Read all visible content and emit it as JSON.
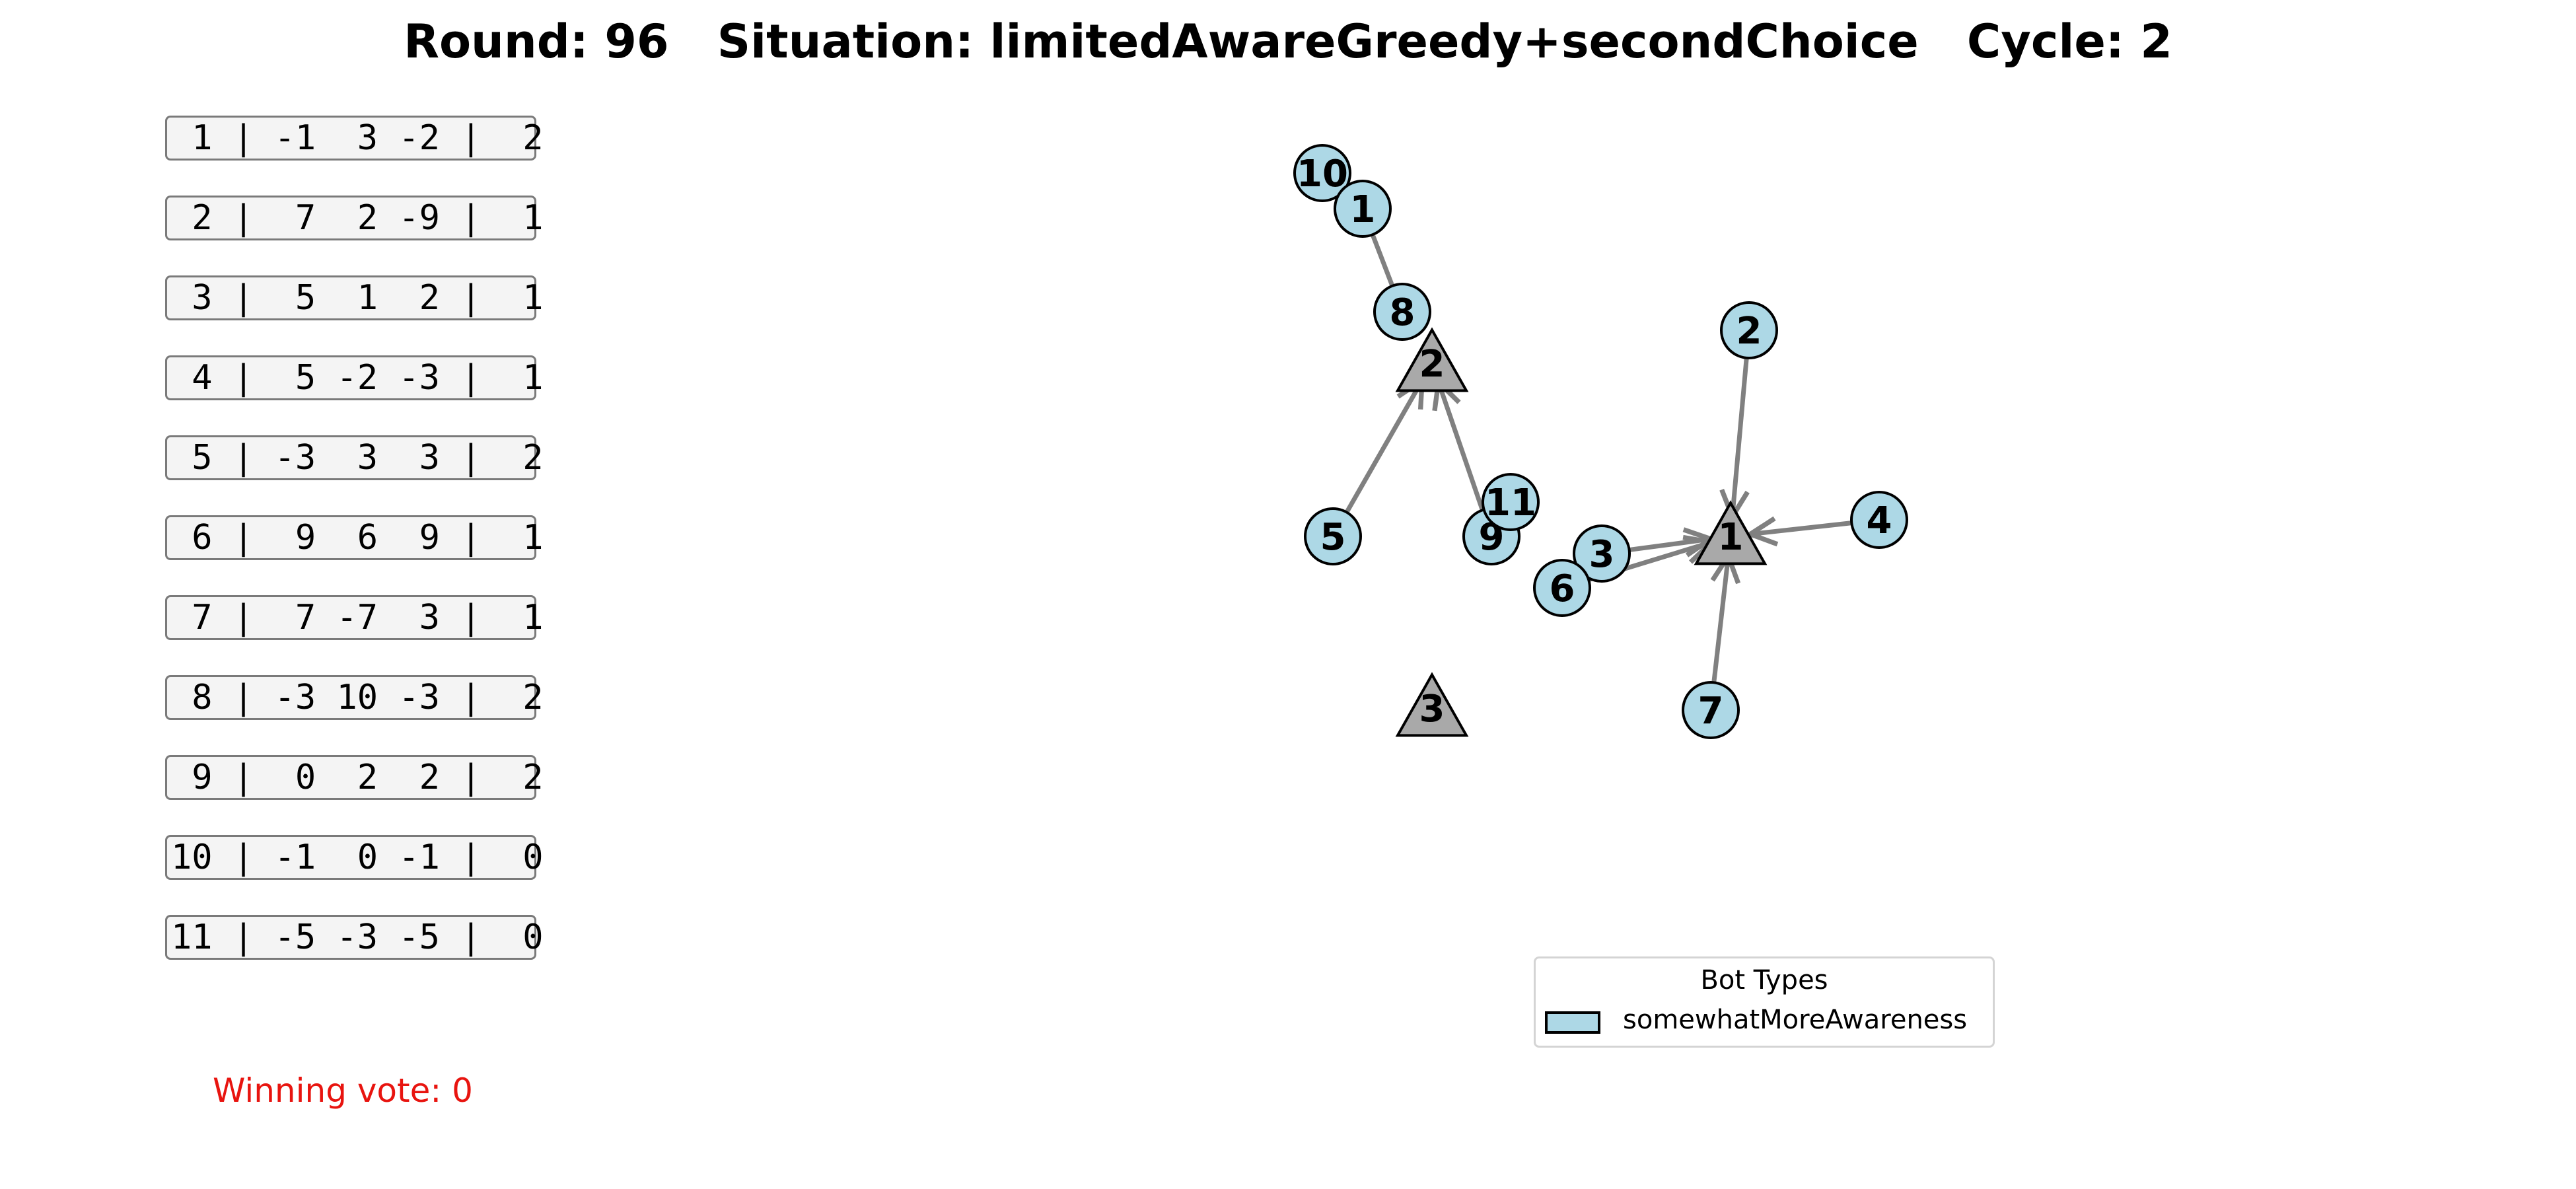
{
  "header": {
    "round_label": "Round:",
    "round": "96",
    "situation_label": "Situation:",
    "situation": "limitedAwareGreedy+secondChoice",
    "cycle_label": "Cycle:",
    "cycle": "2"
  },
  "vote_table": [
    {
      "id": "1",
      "values": [
        "-1",
        "3",
        "-2"
      ],
      "choice": "2"
    },
    {
      "id": "2",
      "values": [
        "7",
        "2",
        "-9"
      ],
      "choice": "1"
    },
    {
      "id": "3",
      "values": [
        "5",
        "1",
        "2"
      ],
      "choice": "1"
    },
    {
      "id": "4",
      "values": [
        "5",
        "-2",
        "-3"
      ],
      "choice": "1"
    },
    {
      "id": "5",
      "values": [
        "-3",
        "3",
        "3"
      ],
      "choice": "2"
    },
    {
      "id": "6",
      "values": [
        "9",
        "6",
        "9"
      ],
      "choice": "1"
    },
    {
      "id": "7",
      "values": [
        "7",
        "-7",
        "3"
      ],
      "choice": "1"
    },
    {
      "id": "8",
      "values": [
        "-3",
        "10",
        "-3"
      ],
      "choice": "2"
    },
    {
      "id": "9",
      "values": [
        "0",
        "2",
        "2"
      ],
      "choice": "2"
    },
    {
      "id": "10",
      "values": [
        "-1",
        "0",
        "-1"
      ],
      "choice": "0"
    },
    {
      "id": "11",
      "values": [
        "-5",
        "-3",
        "-5"
      ],
      "choice": "0"
    }
  ],
  "winning_vote": {
    "label": "Winning vote:",
    "value": "0"
  },
  "graph": {
    "options": [
      {
        "label": "1"
      },
      {
        "label": "2"
      },
      {
        "label": "3"
      }
    ],
    "bots": [
      {
        "label": "10",
        "target": null
      },
      {
        "label": "1",
        "target": null
      },
      {
        "label": "8",
        "target": null
      },
      {
        "label": "2",
        "target": "1"
      },
      {
        "label": "5",
        "target": "2"
      },
      {
        "label": "9",
        "target": "2"
      },
      {
        "label": "11",
        "target": null
      },
      {
        "label": "3",
        "target": "1"
      },
      {
        "label": "6",
        "target": "1"
      },
      {
        "label": "4",
        "target": "1"
      },
      {
        "label": "7",
        "target": "1"
      }
    ],
    "extra_edges": [
      {
        "from": "1",
        "to": "8"
      }
    ],
    "colors": {
      "bot_fill": "#add8e6",
      "option_fill": "#a9a9a9",
      "edge": "#808080"
    }
  },
  "legend": {
    "title": "Bot Types",
    "entries": [
      {
        "label": "somewhatMoreAwareness",
        "color": "#add8e6"
      }
    ]
  }
}
